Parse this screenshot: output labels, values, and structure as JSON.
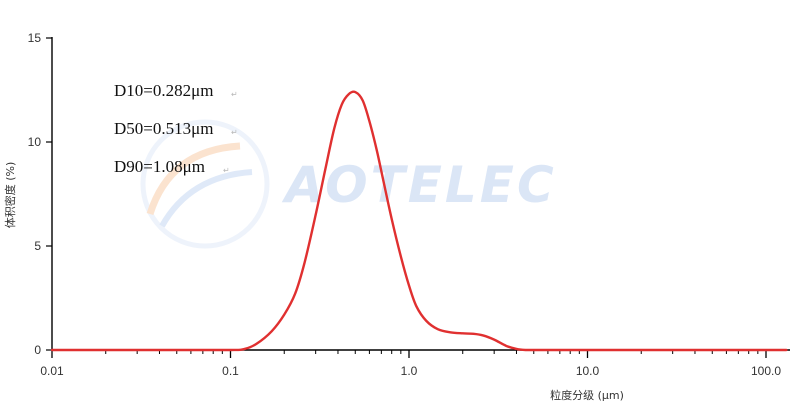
{
  "watermark": {
    "text": "AOTELEC",
    "color": "#dbe6f6"
  },
  "chart_data": {
    "type": "line",
    "title": "",
    "xlabel": "粒度分级 (μm)",
    "ylabel": "体积密度 (%)",
    "x_scale": "log",
    "xlim": [
      0.01,
      130
    ],
    "ylim": [
      0,
      15
    ],
    "x_ticks": [
      0.01,
      0.1,
      1.0,
      10.0,
      100.0
    ],
    "x_tick_labels": [
      "0.01",
      "0.1",
      "1.0",
      "10.0",
      "100.0"
    ],
    "y_ticks": [
      0,
      5,
      10,
      15
    ],
    "y_tick_labels": [
      "0",
      "5",
      "10",
      "15"
    ],
    "grid": false,
    "line_color": "#e03030",
    "annotations": [
      "D10=0.282μm",
      "D50=0.513μm",
      "D90=1.08μm"
    ],
    "series": [
      {
        "x": [
          0.01,
          0.05,
          0.1,
          0.12,
          0.14,
          0.17,
          0.2,
          0.23,
          0.26,
          0.3,
          0.34,
          0.38,
          0.42,
          0.46,
          0.5,
          0.55,
          0.6,
          0.66,
          0.72,
          0.8,
          0.9,
          1.0,
          1.1,
          1.25,
          1.45,
          1.7,
          2.0,
          2.3,
          2.6,
          3.0,
          3.5,
          4.0,
          4.5,
          5.0,
          10.0,
          130
        ],
        "y": [
          0,
          0,
          0,
          0.05,
          0.3,
          0.9,
          1.7,
          2.7,
          4.2,
          6.5,
          8.7,
          10.6,
          11.8,
          12.3,
          12.4,
          12.0,
          11.0,
          9.6,
          8.1,
          6.3,
          4.5,
          3.1,
          2.1,
          1.4,
          1.0,
          0.85,
          0.8,
          0.78,
          0.7,
          0.5,
          0.2,
          0.05,
          0,
          0,
          0,
          0
        ]
      }
    ]
  }
}
